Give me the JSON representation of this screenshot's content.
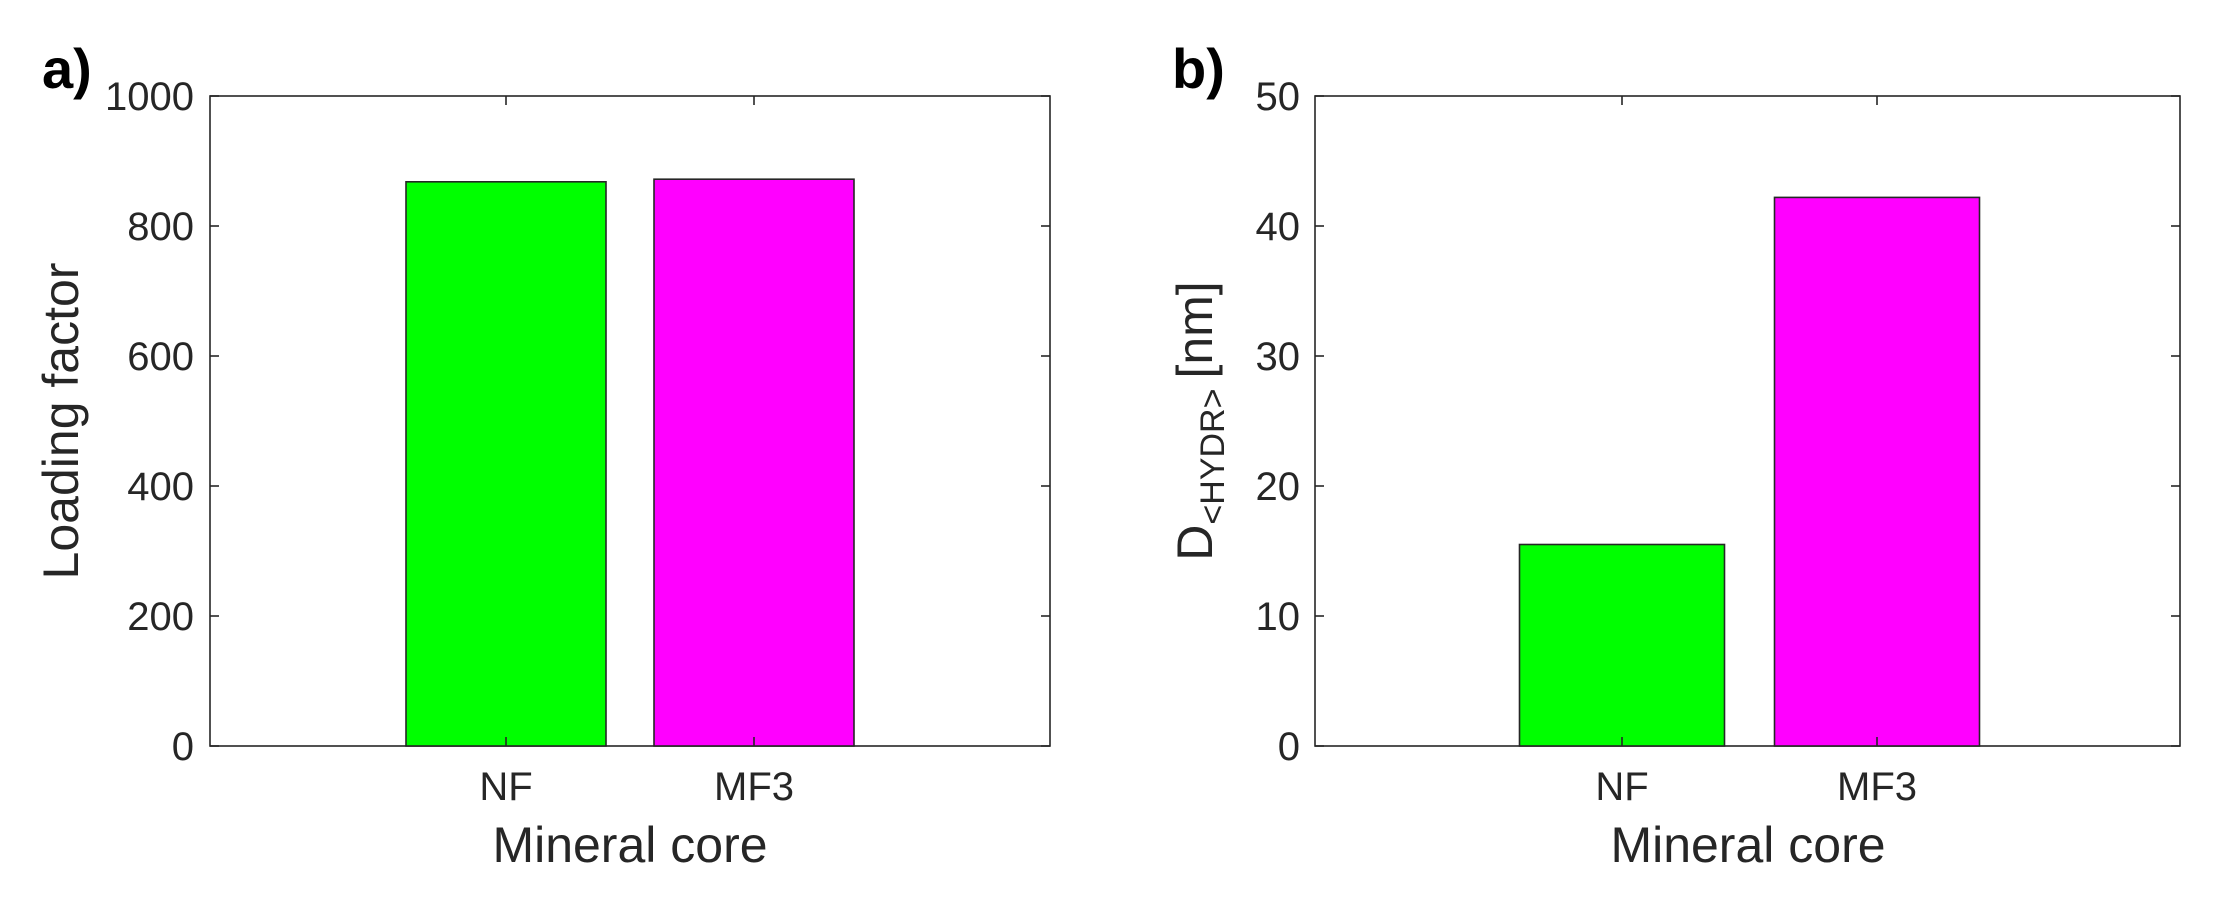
{
  "chart_data": [
    {
      "type": "bar",
      "panel_label": "a)",
      "categories": [
        "NF",
        "MF3"
      ],
      "values": [
        868,
        872
      ],
      "colors": [
        "#00ff00",
        "#ff00ff"
      ],
      "xlabel": "Mineral core",
      "ylabel": "Loading factor",
      "ylim": [
        0,
        1000
      ],
      "yticks": [
        "0",
        "200",
        "400",
        "600",
        "800",
        "1000"
      ],
      "grid": false
    },
    {
      "type": "bar",
      "panel_label": "b)",
      "categories": [
        "NF",
        "MF3"
      ],
      "values": [
        15.5,
        42.2
      ],
      "colors": [
        "#00ff00",
        "#ff00ff"
      ],
      "xlabel": "Mineral core",
      "ylabel_main": "D",
      "ylabel_sub": "<HYDR>",
      "ylabel_unit": "[nm]",
      "ylim": [
        0,
        50
      ],
      "yticks": [
        "0",
        "10",
        "20",
        "30",
        "40",
        "50"
      ],
      "grid": false
    }
  ]
}
